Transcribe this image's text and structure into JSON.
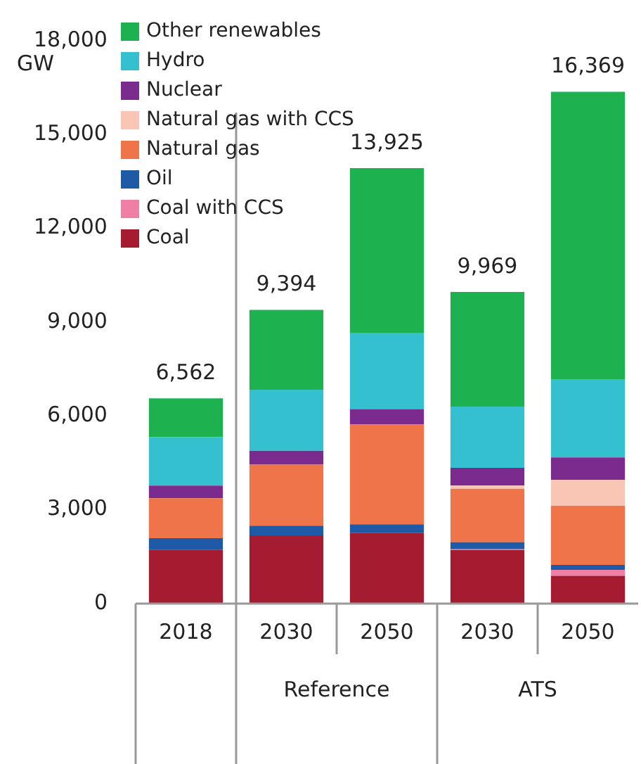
{
  "chart_data": {
    "type": "bar",
    "stacked": true,
    "ylabel": "GW",
    "categories": [
      "2018",
      "2030",
      "2050",
      "2030",
      "2050"
    ],
    "series": [
      {
        "name": "Coal",
        "color": "#a51c30",
        "values": [
          1725,
          2180,
          2265,
          1710,
          890
        ]
      },
      {
        "name": "Coal with CCS",
        "color": "#f07fa5",
        "values": [
          0,
          0,
          0,
          30,
          190
        ]
      },
      {
        "name": "Oil",
        "color": "#1f5aa6",
        "values": [
          365,
          310,
          270,
          225,
          160
        ]
      },
      {
        "name": "Natural gas",
        "color": "#f0744a",
        "values": [
          1280,
          1955,
          3190,
          1710,
          1885
        ]
      },
      {
        "name": "Natural gas with CCS",
        "color": "#f9c6b6",
        "values": [
          0,
          0,
          0,
          100,
          835
        ]
      },
      {
        "name": "Nuclear",
        "color": "#7b2b8e",
        "values": [
          405,
          445,
          495,
          565,
          715
        ]
      },
      {
        "name": "Hydro",
        "color": "#35c0cf",
        "values": [
          1545,
          1950,
          2440,
          1960,
          2505
        ]
      },
      {
        "name": "Other renewables",
        "color": "#1db150",
        "values": [
          1242,
          2554,
          5265,
          3669,
          9189
        ]
      }
    ],
    "totals": [
      "6,562",
      "9,394",
      "13,925",
      "9,969",
      "16,369"
    ],
    "annotations": [
      "Reference",
      "ATS"
    ],
    "ylim": [
      0,
      18000
    ],
    "yticks": [
      {
        "value": 0,
        "label": "0"
      },
      {
        "value": 3000,
        "label": "3,000"
      },
      {
        "value": 6000,
        "label": "6,000"
      },
      {
        "value": 9000,
        "label": "9,000"
      },
      {
        "value": 12000,
        "label": "12,000"
      },
      {
        "value": 15000,
        "label": "15,000"
      },
      {
        "value": 18000,
        "label": "18,000"
      }
    ],
    "grid": false,
    "legend": "top left"
  }
}
